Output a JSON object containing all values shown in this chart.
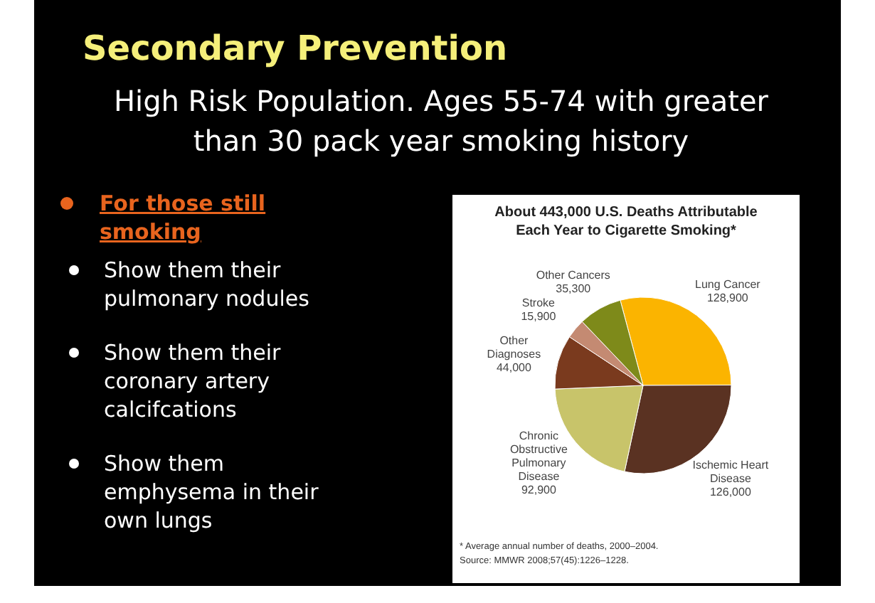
{
  "chart_data": {
    "type": "pie",
    "title": "About 443,000 U.S. Deaths Attributable Each Year to Cigarette Smoking*",
    "categories": [
      "Lung Cancer",
      "Ischemic Heart Disease",
      "Chronic Obstructive Pulmonary Disease",
      "Other Diagnoses",
      "Stroke",
      "Other Cancers"
    ],
    "values": [
      128900,
      126000,
      92900,
      44000,
      15900,
      35300
    ],
    "colors": [
      "#fbb400",
      "#5a3222",
      "#c8c46a",
      "#7a3a1e",
      "#c48a72",
      "#7e8a1a"
    ],
    "value_labels": [
      "128,900",
      "126,000",
      "92,900",
      "44,000",
      "15,900",
      "35,300"
    ],
    "annotations": [
      "Secondary Prevention",
      "High Risk Population. Ages 55-74 with greater than 30 pack year smoking history",
      "For those still smoking",
      "Show them their pulmonary nodules",
      "Show them their coronary artery calcifcations",
      "Show them emphysema in their own lungs",
      "* Average annual number of deaths, 2000–2004.",
      "Source: MMWR 2008;57(45):1226–1228."
    ]
  }
}
